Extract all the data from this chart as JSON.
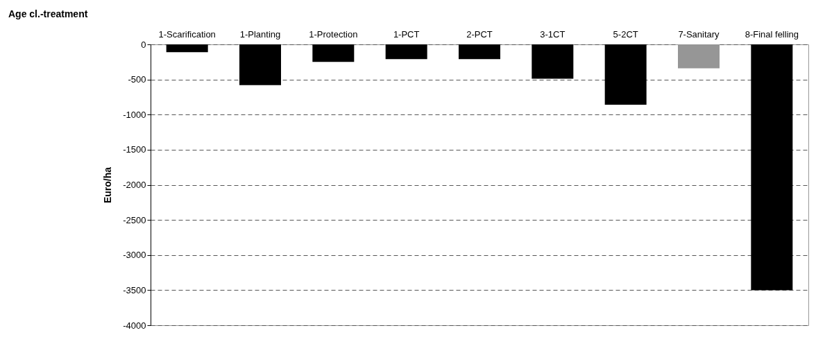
{
  "chart_data": {
    "type": "bar",
    "xlabel": "Age cl.-treatment",
    "ylabel": "Euro/ha",
    "categories": [
      "1-Scarification",
      "1-Planting",
      "1-Protection",
      "1-PCT",
      "2-PCT",
      "3-1CT",
      "5-2CT",
      "7-Sanitary",
      "8-Final felling"
    ],
    "values": [
      -110,
      -580,
      -250,
      -210,
      -210,
      -490,
      -860,
      -340,
      -3500
    ],
    "colors": [
      "#000000",
      "#000000",
      "#000000",
      "#000000",
      "#000000",
      "#000000",
      "#000000",
      "#969696",
      "#000000"
    ],
    "ylim": [
      -4000,
      0
    ],
    "yticks": [
      -4000,
      -3500,
      -3000,
      -2500,
      -2000,
      -1500,
      -1000,
      -500,
      0
    ],
    "grid": "y"
  }
}
